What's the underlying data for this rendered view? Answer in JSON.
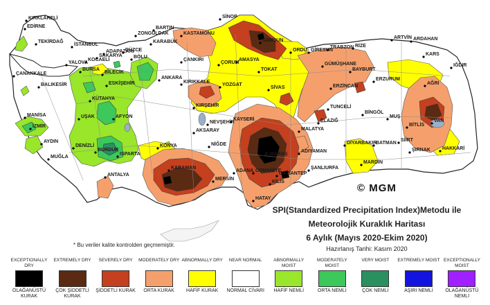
{
  "title": {
    "line1": "SPI(Standardized Precipitation Index)Metodu ile",
    "line2": "Meteorolojik Kuraklık Haritası",
    "line3": "6 Aylık (Mayıs 2020-Ekim 2020)",
    "prepared": "Hazırlanış Tarihi: Kasım 2020"
  },
  "watermark": "© MGM",
  "note": "* Bu veriler kalite kontrolden geçmemiştir.",
  "colors": {
    "sea": "#ffffff",
    "border": "#7a7a7a",
    "water": "#9ab0c8"
  },
  "legend": [
    {
      "en": "EXCEPTIONALLY DRY",
      "tr": "OLAĞANÜSTÜ KURAK",
      "color": "#000000"
    },
    {
      "en": "EXTREMELY DRY",
      "tr": "ÇOK ŞİDDETLİ KURAK",
      "color": "#5a2a12"
    },
    {
      "en": "SEVERELY DRY",
      "tr": "ŞİDDETLİ KURAK",
      "color": "#c4401e"
    },
    {
      "en": "MODERATELY DRY",
      "tr": "ORTA KURAK",
      "color": "#f5a06c"
    },
    {
      "en": "ABNORMALLY DRY",
      "tr": "HAFİF KURAK",
      "color": "#ffff00"
    },
    {
      "en": "NEAR NORMAL",
      "tr": "NORMAL CİVARI",
      "color": "#ffffff"
    },
    {
      "en": "ABNORMALLY MOIST",
      "tr": "HAFİF NEMLİ",
      "color": "#99e62a"
    },
    {
      "en": "MODERATELY MOIST",
      "tr": "ORTA NEMLİ",
      "color": "#3cc85a"
    },
    {
      "en": "VERY MOIST",
      "tr": "ÇOK NEMLİ",
      "color": "#2a9060"
    },
    {
      "en": "EXTREMELY MOIST",
      "tr": "AŞIRI NEMLİ",
      "color": "#1414e0"
    },
    {
      "en": "EXCEPTIONALLY MOIST",
      "tr": "OLAĞANÜSTÜ NEMLİ",
      "color": "#a020ff"
    }
  ],
  "cities": [
    {
      "name": "KIRKLARELİ"
    },
    {
      "name": "EDİRNE"
    },
    {
      "name": "TEKİRDAĞ"
    },
    {
      "name": "İSTANBUL"
    },
    {
      "name": "ÇANAKKALE"
    },
    {
      "name": "BALIKESİR"
    },
    {
      "name": "BURSA"
    },
    {
      "name": "BİLECİK"
    },
    {
      "name": "SAKARYA"
    },
    {
      "name": "KOCAELİ"
    },
    {
      "name": "YALOVA"
    },
    {
      "name": "ADAPAZARI"
    },
    {
      "name": "DÜZCE"
    },
    {
      "name": "BOLU"
    },
    {
      "name": "ESKİŞEHİR"
    },
    {
      "name": "KÜTAHYA"
    },
    {
      "name": "MANİSA"
    },
    {
      "name": "İZMİR"
    },
    {
      "name": "AYDIN"
    },
    {
      "name": "MUĞLA"
    },
    {
      "name": "DENİZLİ"
    },
    {
      "name": "UŞAK"
    },
    {
      "name": "AFYON"
    },
    {
      "name": "BURDUR"
    },
    {
      "name": "ISPARTA"
    },
    {
      "name": "ANTALYA"
    },
    {
      "name": "ZONGULDAK"
    },
    {
      "name": "BARTIN"
    },
    {
      "name": "KARABÜK"
    },
    {
      "name": "KASTAMONU"
    },
    {
      "name": "SİNOP"
    },
    {
      "name": "ÇANKIRI"
    },
    {
      "name": "ANKARA"
    },
    {
      "name": "KIRIKKALE"
    },
    {
      "name": "ÇORUM"
    },
    {
      "name": "AMASYA"
    },
    {
      "name": "SAMSUN"
    },
    {
      "name": "ORDU"
    },
    {
      "name": "GİRESUN"
    },
    {
      "name": "TRABZON"
    },
    {
      "name": "RİZE"
    },
    {
      "name": "ARTVİN"
    },
    {
      "name": "ARDAHAN"
    },
    {
      "name": "KARS"
    },
    {
      "name": "IĞDIR"
    },
    {
      "name": "AĞRI"
    },
    {
      "name": "ERZURUM"
    },
    {
      "name": "BAYBURT"
    },
    {
      "name": "GÜMÜŞHANE"
    },
    {
      "name": "ERZİNCAN"
    },
    {
      "name": "TOKAT"
    },
    {
      "name": "SİVAS"
    },
    {
      "name": "YOZGAT"
    },
    {
      "name": "KIRŞEHİR"
    },
    {
      "name": "NEVŞEHİR"
    },
    {
      "name": "KAYSERİ"
    },
    {
      "name": "AKSARAY"
    },
    {
      "name": "NİĞDE"
    },
    {
      "name": "KONYA"
    },
    {
      "name": "KARAMAN"
    },
    {
      "name": "MERSİN"
    },
    {
      "name": "ADANA"
    },
    {
      "name": "OSMANİYE"
    },
    {
      "name": "HATAY"
    },
    {
      "name": "K.MARAŞ"
    },
    {
      "name": "GAZİANTEP"
    },
    {
      "name": "KİLİS"
    },
    {
      "name": "ŞANLIURFA"
    },
    {
      "name": "ADIYAMAN"
    },
    {
      "name": "MALATYA"
    },
    {
      "name": "ELAZIĞ"
    },
    {
      "name": "TUNCELİ"
    },
    {
      "name": "BİNGÖL"
    },
    {
      "name": "MUŞ"
    },
    {
      "name": "BİTLİS"
    },
    {
      "name": "VAN"
    },
    {
      "name": "SİİRT"
    },
    {
      "name": "BATMAN"
    },
    {
      "name": "DİYARBAKIR"
    },
    {
      "name": "MARDİN"
    },
    {
      "name": "ŞIRNAK"
    },
    {
      "name": "HAKKARİ"
    }
  ]
}
